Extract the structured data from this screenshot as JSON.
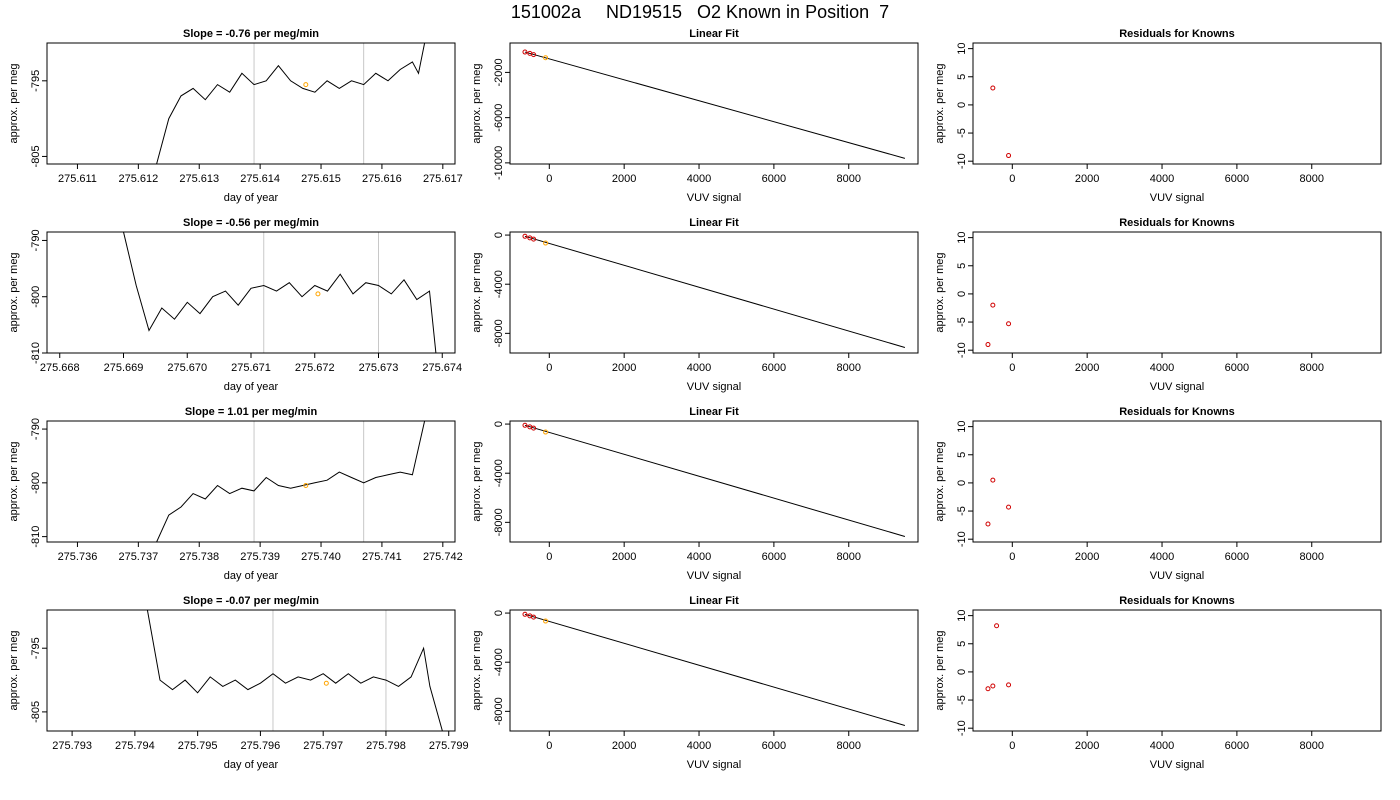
{
  "page": {
    "title": "151002a     ND19515   O2 Known in Position  7"
  },
  "colors": {
    "trace": "#000000",
    "marker_orange": "#ffa500",
    "marker_red": "#d00000",
    "vertical_guides": "#c8c8c8",
    "frame": "#000000"
  },
  "chart_data": [
    {
      "type": "line",
      "row": 1,
      "panel": "time-series",
      "title": "Slope =  -0.76  per meg/min",
      "xlabel": "day of year",
      "ylabel": "approx. per meg",
      "xlim": [
        275.6105,
        275.6172
      ],
      "ylim": [
        -806,
        -790
      ],
      "xticks": [
        275.611,
        275.612,
        275.613,
        275.614,
        275.615,
        275.616,
        275.617
      ],
      "xtick_labels": [
        "275.611",
        "275.612",
        "275.613",
        "275.614",
        "275.615",
        "275.616",
        "275.617"
      ],
      "yticks": [
        -795,
        -805
      ],
      "ytick_labels": [
        "-795",
        "-805"
      ],
      "vlines": [
        275.6139,
        275.6157
      ],
      "series": [
        {
          "x": [
            275.6123,
            275.6125,
            275.6127,
            275.6129,
            275.6131,
            275.6133,
            275.6135,
            275.6137,
            275.6139,
            275.6141,
            275.6143,
            275.6145,
            275.6147,
            275.6149,
            275.6151,
            275.6153,
            275.6155,
            275.6157,
            275.6159,
            275.6161,
            275.6163,
            275.6165,
            275.6166,
            275.6167
          ],
          "y": [
            -806,
            -800,
            -797,
            -796,
            -797.5,
            -795.5,
            -796.5,
            -794,
            -795.5,
            -795,
            -793,
            -795,
            -796,
            -796.5,
            -795,
            -796,
            -795,
            -795.5,
            -794,
            -795,
            -793.5,
            -792.5,
            -794,
            -790
          ]
        }
      ],
      "points": [
        {
          "x": 275.61475,
          "y": -795.5,
          "color": "orange"
        }
      ]
    },
    {
      "type": "line",
      "row": 2,
      "panel": "time-series",
      "title": "Slope =  -0.56  per meg/min",
      "xlabel": "day of year",
      "ylabel": "approx. per meg",
      "xlim": [
        275.6678,
        275.6742
      ],
      "ylim": [
        -810,
        -788.5
      ],
      "xticks": [
        275.668,
        275.669,
        275.67,
        275.671,
        275.672,
        275.673,
        275.674
      ],
      "xtick_labels": [
        "275.668",
        "275.669",
        "275.670",
        "275.671",
        "275.672",
        "275.673",
        "275.674"
      ],
      "yticks": [
        -790,
        -800,
        -810
      ],
      "ytick_labels": [
        "-790",
        "-800",
        "-810"
      ],
      "vlines": [
        275.6712,
        275.673
      ],
      "series": [
        {
          "x": [
            275.669,
            275.6692,
            275.6694,
            275.6696,
            275.6698,
            275.67,
            275.6702,
            275.6704,
            275.6706,
            275.6708,
            275.671,
            275.6712,
            275.6714,
            275.6716,
            275.6718,
            275.672,
            275.6722,
            275.6724,
            275.6726,
            275.6728,
            275.673,
            275.6732,
            275.6734,
            275.6736,
            275.6738,
            275.6739
          ],
          "y": [
            -788.5,
            -798,
            -806,
            -802,
            -804,
            -801,
            -803,
            -800,
            -799,
            -801.5,
            -798.5,
            -798,
            -799,
            -797.5,
            -800,
            -798,
            -799,
            -796,
            -799.5,
            -797.5,
            -798,
            -799.5,
            -797,
            -800.5,
            -799,
            -810
          ]
        }
      ],
      "points": [
        {
          "x": 275.67205,
          "y": -799.5,
          "color": "orange"
        }
      ]
    },
    {
      "type": "line",
      "row": 3,
      "panel": "time-series",
      "title": "Slope =  1.01  per meg/min",
      "xlabel": "day of year",
      "ylabel": "approx. per meg",
      "xlim": [
        275.7355,
        275.7422
      ],
      "ylim": [
        -811,
        -788.5
      ],
      "xticks": [
        275.736,
        275.737,
        275.738,
        275.739,
        275.74,
        275.741,
        275.742
      ],
      "xtick_labels": [
        "275.736",
        "275.737",
        "275.738",
        "275.739",
        "275.740",
        "275.741",
        "275.742"
      ],
      "yticks": [
        -790,
        -800,
        -810
      ],
      "ytick_labels": [
        "-790",
        "-800",
        "-810"
      ],
      "vlines": [
        275.7389,
        275.7407
      ],
      "series": [
        {
          "x": [
            275.7373,
            275.7375,
            275.7377,
            275.7379,
            275.7381,
            275.7383,
            275.7385,
            275.7387,
            275.7389,
            275.7391,
            275.7393,
            275.7395,
            275.7397,
            275.7399,
            275.7401,
            275.7403,
            275.7405,
            275.7407,
            275.7409,
            275.7411,
            275.7413,
            275.7415,
            275.7417
          ],
          "y": [
            -811,
            -806,
            -804.5,
            -802,
            -803,
            -800.5,
            -802,
            -801,
            -801.5,
            -799,
            -800.5,
            -801,
            -800.5,
            -800,
            -799.5,
            -798,
            -799,
            -800,
            -799,
            -798.5,
            -798,
            -798.5,
            -788.5
          ]
        }
      ],
      "points": [
        {
          "x": 275.73975,
          "y": -800.5,
          "color": "orange"
        }
      ]
    },
    {
      "type": "line",
      "row": 4,
      "panel": "time-series",
      "title": "Slope =  -0.07  per meg/min",
      "xlabel": "day of year",
      "ylabel": "approx. per meg",
      "xlim": [
        275.7926,
        275.7991
      ],
      "ylim": [
        -808,
        -789
      ],
      "xticks": [
        275.793,
        275.794,
        275.795,
        275.796,
        275.797,
        275.798,
        275.799
      ],
      "xtick_labels": [
        "275.793",
        "275.794",
        "275.795",
        "275.796",
        "275.797",
        "275.798",
        "275.799"
      ],
      "yticks": [
        -795,
        -805
      ],
      "ytick_labels": [
        "-795",
        "-805"
      ],
      "vlines": [
        275.7962,
        275.798
      ],
      "series": [
        {
          "x": [
            275.7942,
            275.7944,
            275.7946,
            275.7948,
            275.795,
            275.7952,
            275.7954,
            275.7956,
            275.7958,
            275.796,
            275.7962,
            275.7964,
            275.7966,
            275.7968,
            275.797,
            275.7972,
            275.7974,
            275.7976,
            275.7978,
            275.798,
            275.7982,
            275.7984,
            275.7986,
            275.7987,
            275.7989
          ],
          "y": [
            -789,
            -800,
            -801.5,
            -800,
            -802,
            -799.5,
            -801,
            -800,
            -801.5,
            -800.5,
            -799,
            -800.5,
            -799.5,
            -800,
            -799,
            -800.5,
            -799,
            -800.5,
            -799.5,
            -800,
            -801,
            -799.5,
            -795,
            -801,
            -808
          ]
        }
      ],
      "points": [
        {
          "x": 275.79705,
          "y": -800.5,
          "color": "orange"
        }
      ]
    },
    {
      "type": "scatter",
      "row": 1,
      "panel": "linear-fit",
      "title": "Linear Fit",
      "xlabel": "VUV signal",
      "ylabel": "approx. per meg",
      "xlim": [
        -1050,
        9850
      ],
      "ylim": [
        -10100,
        600
      ],
      "xticks": [
        0,
        2000,
        4000,
        6000,
        8000
      ],
      "xtick_labels": [
        "0",
        "2000",
        "4000",
        "6000",
        "8000"
      ],
      "yticks": [
        -2000,
        -6000,
        -10000
      ],
      "ytick_labels": [
        "-2000",
        "-6000",
        "-10000"
      ],
      "fit_line": {
        "x": [
          -650,
          9500
        ],
        "y": [
          -200,
          -9600
        ]
      },
      "points": [
        {
          "x": -650,
          "y": -200,
          "color": "red"
        },
        {
          "x": -520,
          "y": -320,
          "color": "red"
        },
        {
          "x": -420,
          "y": -430,
          "color": "red"
        },
        {
          "x": -100,
          "y": -700,
          "color": "orange"
        }
      ]
    },
    {
      "type": "scatter",
      "row": 2,
      "panel": "linear-fit",
      "title": "Linear Fit",
      "xlabel": "VUV signal",
      "ylabel": "approx. per meg",
      "xlim": [
        -1050,
        9850
      ],
      "ylim": [
        -9600,
        250
      ],
      "xticks": [
        0,
        2000,
        4000,
        6000,
        8000
      ],
      "xtick_labels": [
        "0",
        "2000",
        "4000",
        "6000",
        "8000"
      ],
      "yticks": [
        0,
        -4000,
        -8000
      ],
      "ytick_labels": [
        "0",
        "-4000",
        "-8000"
      ],
      "fit_line": {
        "x": [
          -650,
          9500
        ],
        "y": [
          -100,
          -9150
        ]
      },
      "points": [
        {
          "x": -650,
          "y": -100,
          "color": "red"
        },
        {
          "x": -520,
          "y": -230,
          "color": "red"
        },
        {
          "x": -420,
          "y": -330,
          "color": "red"
        },
        {
          "x": -100,
          "y": -650,
          "color": "orange"
        }
      ]
    },
    {
      "type": "scatter",
      "row": 3,
      "panel": "linear-fit",
      "title": "Linear Fit",
      "xlabel": "VUV signal",
      "ylabel": "approx. per meg",
      "xlim": [
        -1050,
        9850
      ],
      "ylim": [
        -9600,
        250
      ],
      "xticks": [
        0,
        2000,
        4000,
        6000,
        8000
      ],
      "xtick_labels": [
        "0",
        "2000",
        "4000",
        "6000",
        "8000"
      ],
      "yticks": [
        0,
        -4000,
        -8000
      ],
      "ytick_labels": [
        "0",
        "-4000",
        "-8000"
      ],
      "fit_line": {
        "x": [
          -650,
          9500
        ],
        "y": [
          -100,
          -9150
        ]
      },
      "points": [
        {
          "x": -650,
          "y": -100,
          "color": "red"
        },
        {
          "x": -520,
          "y": -230,
          "color": "red"
        },
        {
          "x": -420,
          "y": -330,
          "color": "red"
        },
        {
          "x": -100,
          "y": -650,
          "color": "orange"
        }
      ]
    },
    {
      "type": "scatter",
      "row": 4,
      "panel": "linear-fit",
      "title": "Linear Fit",
      "xlabel": "VUV signal",
      "ylabel": "approx. per meg",
      "xlim": [
        -1050,
        9850
      ],
      "ylim": [
        -9600,
        250
      ],
      "xticks": [
        0,
        2000,
        4000,
        6000,
        8000
      ],
      "xtick_labels": [
        "0",
        "2000",
        "4000",
        "6000",
        "8000"
      ],
      "yticks": [
        0,
        -4000,
        -8000
      ],
      "ytick_labels": [
        "0",
        "-4000",
        "-8000"
      ],
      "fit_line": {
        "x": [
          -650,
          9500
        ],
        "y": [
          -100,
          -9150
        ]
      },
      "points": [
        {
          "x": -650,
          "y": -100,
          "color": "red"
        },
        {
          "x": -520,
          "y": -230,
          "color": "red"
        },
        {
          "x": -420,
          "y": -330,
          "color": "red"
        },
        {
          "x": -100,
          "y": -650,
          "color": "orange"
        }
      ]
    },
    {
      "type": "scatter",
      "row": 1,
      "panel": "residuals",
      "title": "Residuals for Knowns",
      "xlabel": "VUV signal",
      "ylabel": "approx. per meg",
      "xlim": [
        -1050,
        9850
      ],
      "ylim": [
        -10.5,
        11
      ],
      "xticks": [
        0,
        2000,
        4000,
        6000,
        8000
      ],
      "xtick_labels": [
        "0",
        "2000",
        "4000",
        "6000",
        "8000"
      ],
      "yticks": [
        10,
        5,
        0,
        -5,
        -10
      ],
      "ytick_labels": [
        "10",
        "5",
        "0",
        "-5",
        "-10"
      ],
      "points": [
        {
          "x": -520,
          "y": 3,
          "color": "red"
        },
        {
          "x": -100,
          "y": -9,
          "color": "red"
        }
      ]
    },
    {
      "type": "scatter",
      "row": 2,
      "panel": "residuals",
      "title": "Residuals for Knowns",
      "xlabel": "VUV signal",
      "ylabel": "approx. per meg",
      "xlim": [
        -1050,
        9850
      ],
      "ylim": [
        -10.5,
        11
      ],
      "xticks": [
        0,
        2000,
        4000,
        6000,
        8000
      ],
      "xtick_labels": [
        "0",
        "2000",
        "4000",
        "6000",
        "8000"
      ],
      "yticks": [
        10,
        5,
        0,
        -5,
        -10
      ],
      "ytick_labels": [
        "10",
        "5",
        "0",
        "-5",
        "-10"
      ],
      "points": [
        {
          "x": -650,
          "y": -9,
          "color": "red"
        },
        {
          "x": -520,
          "y": -2,
          "color": "red"
        },
        {
          "x": -100,
          "y": -5.3,
          "color": "red"
        }
      ]
    },
    {
      "type": "scatter",
      "row": 3,
      "panel": "residuals",
      "title": "Residuals for Knowns",
      "xlabel": "VUV signal",
      "ylabel": "approx. per meg",
      "xlim": [
        -1050,
        9850
      ],
      "ylim": [
        -10.5,
        11
      ],
      "xticks": [
        0,
        2000,
        4000,
        6000,
        8000
      ],
      "xtick_labels": [
        "0",
        "2000",
        "4000",
        "6000",
        "8000"
      ],
      "yticks": [
        10,
        5,
        0,
        -5,
        -10
      ],
      "ytick_labels": [
        "10",
        "5",
        "0",
        "-5",
        "-10"
      ],
      "points": [
        {
          "x": -650,
          "y": -7.3,
          "color": "red"
        },
        {
          "x": -520,
          "y": 0.5,
          "color": "red"
        },
        {
          "x": -100,
          "y": -4.3,
          "color": "red"
        }
      ]
    },
    {
      "type": "scatter",
      "row": 4,
      "panel": "residuals",
      "title": "Residuals for Knowns",
      "xlabel": "VUV signal",
      "ylabel": "approx. per meg",
      "xlim": [
        -1050,
        9850
      ],
      "ylim": [
        -10.5,
        11
      ],
      "xticks": [
        0,
        2000,
        4000,
        6000,
        8000
      ],
      "xtick_labels": [
        "0",
        "2000",
        "4000",
        "6000",
        "8000"
      ],
      "yticks": [
        10,
        5,
        0,
        -5,
        -10
      ],
      "ytick_labels": [
        "10",
        "5",
        "0",
        "-5",
        "-10"
      ],
      "points": [
        {
          "x": -650,
          "y": -3,
          "color": "red"
        },
        {
          "x": -520,
          "y": -2.5,
          "color": "red"
        },
        {
          "x": -420,
          "y": 8.2,
          "color": "red"
        },
        {
          "x": -100,
          "y": -2.3,
          "color": "red"
        }
      ]
    }
  ]
}
